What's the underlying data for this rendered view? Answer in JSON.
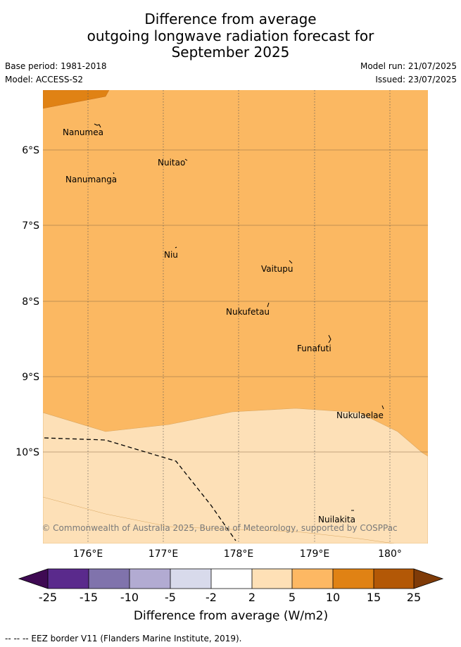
{
  "title": {
    "line1": "Difference from average",
    "line2": "outgoing longwave radiation forecast for",
    "line3": "September 2025"
  },
  "meta": {
    "base_period": "Base period: 1981-2018",
    "model": "Model: ACCESS-S2",
    "model_run": "Model run: 21/07/2025",
    "issued": "Issued: 23/07/2025"
  },
  "map": {
    "lat_labels": [
      "6°S",
      "7°S",
      "8°S",
      "9°S",
      "10°S"
    ],
    "lon_labels": [
      "176°E",
      "177°E",
      "178°E",
      "179°E",
      "180°"
    ],
    "places": [
      {
        "name": "Nanumea"
      },
      {
        "name": "Nuitao"
      },
      {
        "name": "Nanumanga"
      },
      {
        "name": "Niu"
      },
      {
        "name": "Vaitupu"
      },
      {
        "name": "Nukufetau"
      },
      {
        "name": "Funafuti"
      },
      {
        "name": "Nukulaelae"
      },
      {
        "name": "Nuilakita"
      }
    ],
    "copyright": "© Commonwealth of Australia 2025, Bureau of Meteorology, supported by COSPPac",
    "colors": {
      "class_5_10": "#fbb862",
      "class_2_5": "#fde0b7",
      "class_10_15": "#e08214"
    }
  },
  "colorbar": {
    "ticks": [
      "-25",
      "-15",
      "-10",
      "-5",
      "-2",
      "2",
      "5",
      "10",
      "15",
      "25"
    ],
    "colors": [
      "#3f0a53",
      "#5a2a8c",
      "#8073ac",
      "#b2abd2",
      "#d8daeb",
      "#ffffff",
      "#fee0b6",
      "#fdb863",
      "#e08214",
      "#b35806",
      "#7f3b08"
    ],
    "label": "Difference from average (W/m2)"
  },
  "footnote": "--  --  -- EEZ border V11 (Flanders Marine Institute, 2019)."
}
